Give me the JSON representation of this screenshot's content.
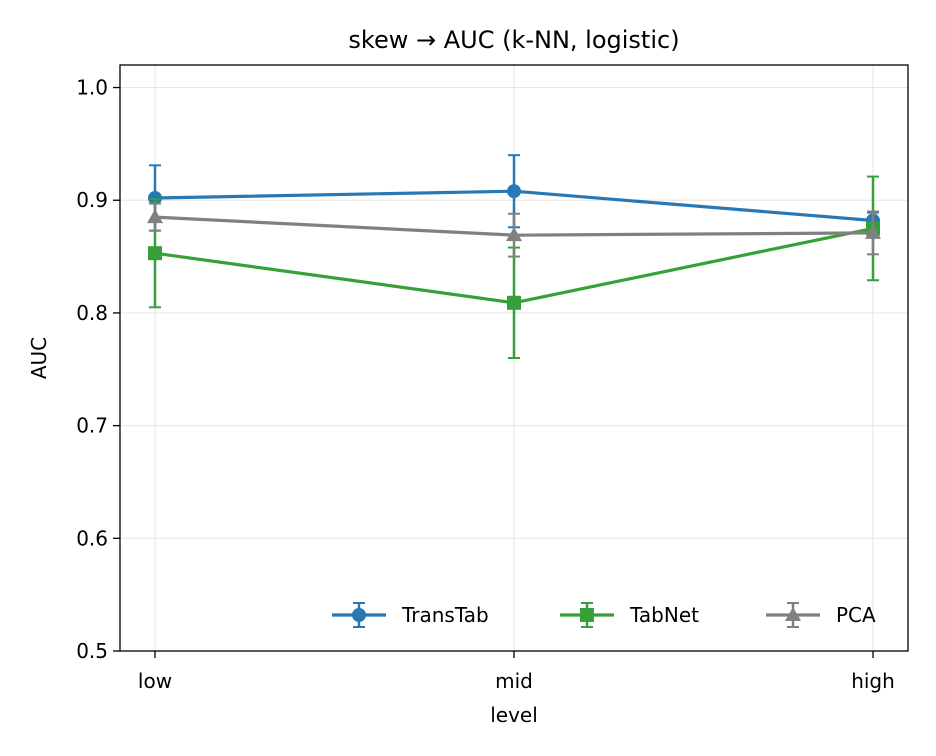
{
  "chart_data": {
    "type": "line",
    "title": "skew → AUC (k-NN, logistic)",
    "xlabel": "level",
    "ylabel": "AUC",
    "categories": [
      "low",
      "mid",
      "high"
    ],
    "ylim": [
      0.5,
      1.02
    ],
    "yticks": [
      "0.5",
      "0.6",
      "0.7",
      "0.8",
      "0.9",
      "1.0"
    ],
    "grid": true,
    "legend_position": "lower-right",
    "series": [
      {
        "name": "TransTab",
        "color": "#2878b5",
        "marker": "circle",
        "values": [
          0.902,
          0.908,
          0.882
        ],
        "errors": [
          0.029,
          0.032,
          0.007
        ]
      },
      {
        "name": "TabNet",
        "color": "#36a03a",
        "marker": "square",
        "values": [
          0.853,
          0.809,
          0.875
        ],
        "errors": [
          0.048,
          0.049,
          0.046
        ]
      },
      {
        "name": "PCA",
        "color": "#808080",
        "marker": "triangle",
        "values": [
          0.885,
          0.869,
          0.871
        ],
        "errors": [
          0.012,
          0.019,
          0.019
        ]
      }
    ]
  }
}
